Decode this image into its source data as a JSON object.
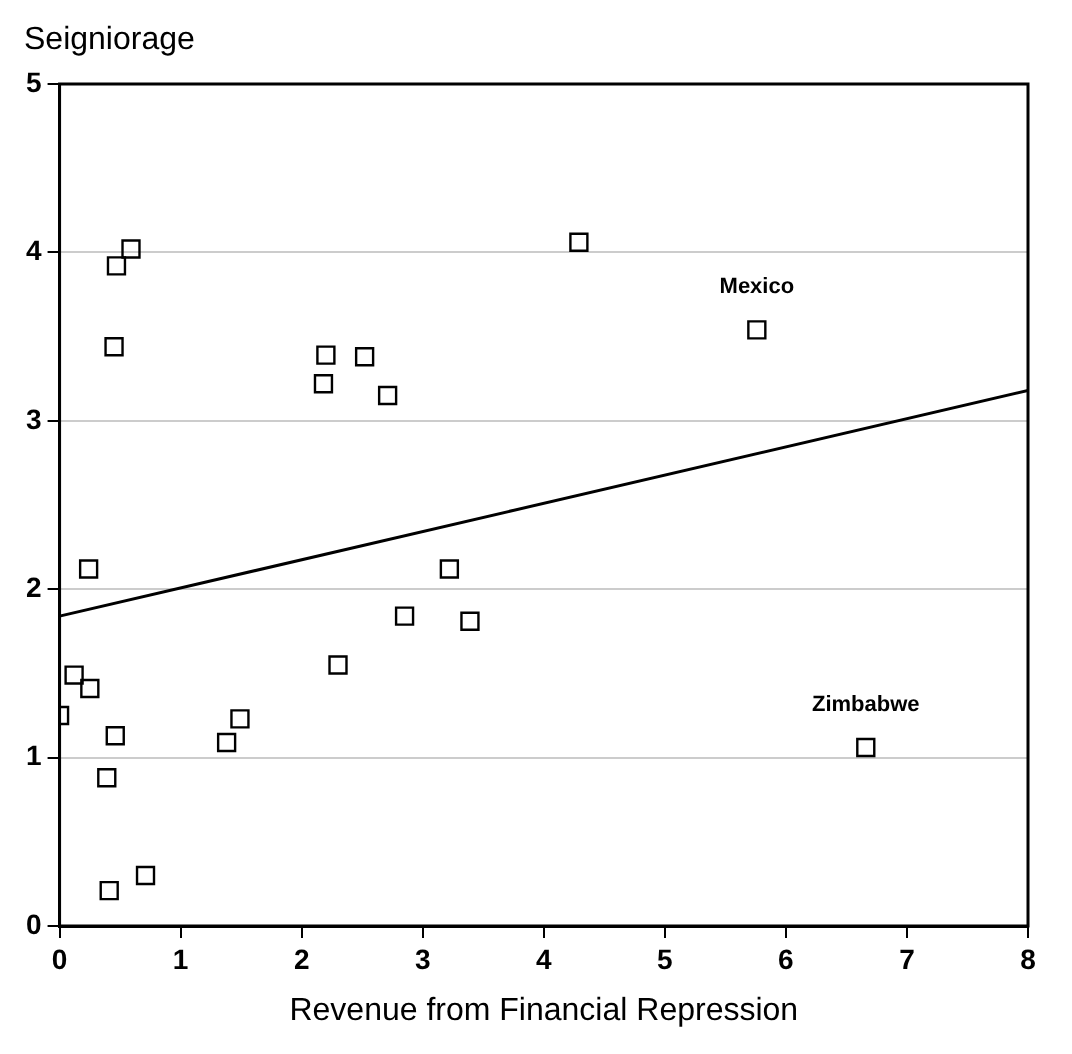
{
  "chart_data": {
    "type": "scatter",
    "xlabel": "Revenue from Financial Repression",
    "ylabel": "Seigniorage",
    "xlim": [
      0,
      8
    ],
    "xticks": [
      0,
      1,
      2,
      3,
      4,
      5,
      6,
      7,
      8
    ],
    "ylim": [
      0,
      5
    ],
    "yticks": [
      0,
      1,
      2,
      3,
      4,
      5
    ],
    "grid": "y",
    "legend": false,
    "series": [
      {
        "marker": "square",
        "color": "#000000",
        "x": [
          0,
          0.12,
          0.25,
          0.24,
          0.47,
          0.59,
          0.45,
          0.46,
          0.39,
          0.41,
          0.71,
          1.38,
          1.49,
          2.2,
          2.18,
          2.52,
          2.71,
          2.3,
          2.85,
          3.22,
          3.39,
          4.29,
          5.76,
          6.66
        ],
        "values": [
          1.25,
          1.49,
          1.41,
          2.12,
          3.92,
          4.02,
          3.44,
          1.13,
          0.88,
          0.21,
          0.3,
          1.09,
          1.23,
          3.39,
          3.22,
          3.38,
          3.15,
          1.55,
          1.84,
          2.12,
          1.81,
          4.06,
          3.54,
          1.06
        ]
      },
      {
        "type": "line",
        "marker": "none",
        "color": "#000000",
        "x": [
          0,
          8
        ],
        "values": [
          1.84,
          3.18
        ]
      }
    ],
    "annotations": [
      {
        "text": "Mexico",
        "x": 5.76,
        "y": 3.54
      },
      {
        "text": "Zimbabwe",
        "x": 6.66,
        "y": 1.06
      }
    ]
  }
}
